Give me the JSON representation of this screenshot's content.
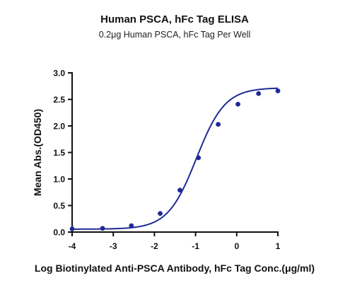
{
  "chart_data": {
    "type": "line",
    "title": "Human PSCA, hFc Tag ELISA",
    "subtitle": "0.2μg Human PSCA, hFc Tag Per Well",
    "xlabel": "Log Biotinylated Anti-PSCA Antibody, hFc Tag Conc.(μg/ml)",
    "ylabel": "Mean Abs.(OD450)",
    "xlim": [
      -4,
      1
    ],
    "ylim": [
      0,
      3.0
    ],
    "x_ticks": [
      "-4",
      "-3",
      "-2",
      "-1",
      "0",
      "1"
    ],
    "y_ticks": [
      "0.0",
      "0.5",
      "1.0",
      "1.5",
      "2.0",
      "2.5",
      "3.0"
    ],
    "grid": false,
    "series_color": "#1f2a96",
    "points": [
      {
        "x": -4.0,
        "y": 0.06
      },
      {
        "x": -3.26,
        "y": 0.07
      },
      {
        "x": -2.56,
        "y": 0.12
      },
      {
        "x": -1.86,
        "y": 0.35
      },
      {
        "x": -1.38,
        "y": 0.79
      },
      {
        "x": -0.93,
        "y": 1.4
      },
      {
        "x": -0.45,
        "y": 2.03
      },
      {
        "x": 0.03,
        "y": 2.41
      },
      {
        "x": 0.53,
        "y": 2.61
      },
      {
        "x": 1.0,
        "y": 2.66
      }
    ],
    "fit": {
      "model": "4PL",
      "bottom": 0.055,
      "top": 2.72,
      "log_ec50": -0.98,
      "hill_slope": 1.25
    }
  }
}
